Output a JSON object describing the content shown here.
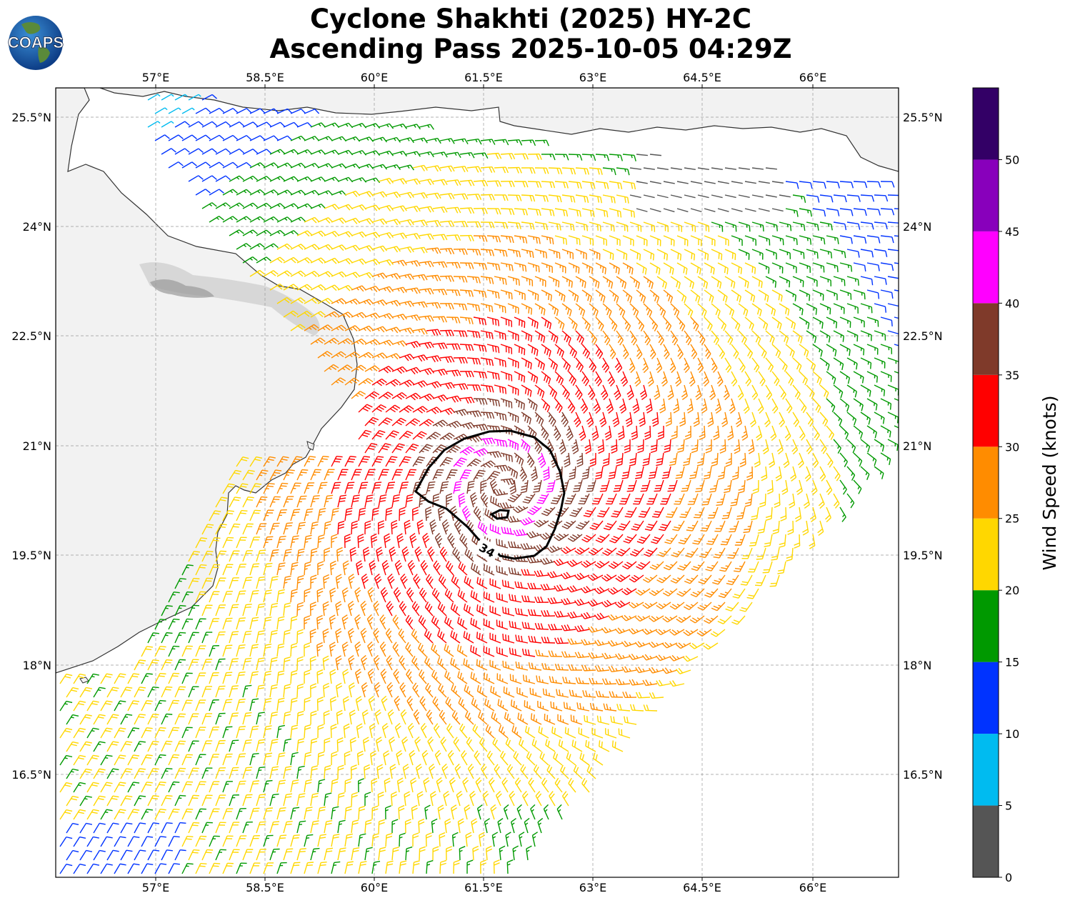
{
  "title_line1": "Cyclone Shakhti (2025) HY-2C",
  "title_line2": "Ascending Pass 2025-10-05 04:29Z",
  "logo_text": "COAPS",
  "lon_ticks": [
    "57°E",
    "58.5°E",
    "60°E",
    "61.5°E",
    "63°E",
    "64.5°E",
    "66°E"
  ],
  "lat_ticks": [
    "25.5°N",
    "24°N",
    "22.5°N",
    "21°N",
    "19.5°N",
    "18°N",
    "16.5°N"
  ],
  "contour_label": "34",
  "colorbar": {
    "label": "Wind Speed (knots)",
    "tick_labels": [
      "0",
      "5",
      "10",
      "15",
      "20",
      "25",
      "30",
      "35",
      "40",
      "45",
      "50"
    ],
    "colors": [
      "#555555",
      "#00bbf0",
      "#0033ff",
      "#009900",
      "#ffd700",
      "#ff8c00",
      "#ff0000",
      "#7f3a2a",
      "#ff00ff",
      "#8800bb",
      "#330066"
    ]
  },
  "chart_data": {
    "type": "wind-barb map",
    "lon_range": [
      55.6,
      67.15
    ],
    "lat_range": [
      15.0,
      25.8
    ],
    "center": {
      "lon": 61.9,
      "lat": 20.5
    },
    "max_wind_kt": 45,
    "contour_kt": 34,
    "grid": true
  }
}
